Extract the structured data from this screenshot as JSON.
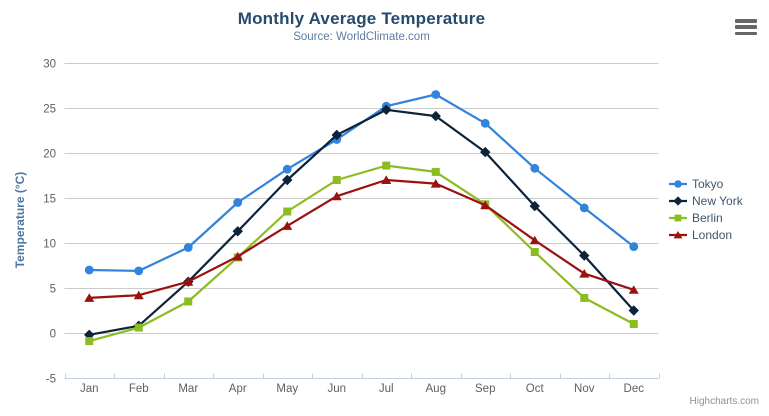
{
  "chart_data": {
    "type": "line",
    "title": "Monthly Average Temperature",
    "subtitle": "Source: WorldClimate.com",
    "xlabel": "",
    "ylabel": "Temperature (°C)",
    "categories": [
      "Jan",
      "Feb",
      "Mar",
      "Apr",
      "May",
      "Jun",
      "Jul",
      "Aug",
      "Sep",
      "Oct",
      "Nov",
      "Dec"
    ],
    "ylim": [
      -5,
      30
    ],
    "yticks": [
      -5,
      0,
      5,
      10,
      15,
      20,
      25,
      30
    ],
    "grid": true,
    "legend_position": "right",
    "series": [
      {
        "name": "Tokyo",
        "color": "#3183dc",
        "marker": "circle",
        "values": [
          7.0,
          6.9,
          9.5,
          14.5,
          18.2,
          21.5,
          25.2,
          26.5,
          23.3,
          18.3,
          13.9,
          9.6
        ]
      },
      {
        "name": "New York",
        "color": "#0d233a",
        "marker": "diamond",
        "values": [
          -0.2,
          0.8,
          5.7,
          11.3,
          17.0,
          22.0,
          24.8,
          24.1,
          20.1,
          14.1,
          8.6,
          2.5
        ]
      },
      {
        "name": "Berlin",
        "color": "#8bbc21",
        "marker": "square",
        "values": [
          -0.9,
          0.6,
          3.5,
          8.4,
          13.5,
          17.0,
          18.6,
          17.9,
          14.3,
          9.0,
          3.9,
          1.0
        ]
      },
      {
        "name": "London",
        "color": "#9c1010",
        "marker": "triangle",
        "values": [
          3.9,
          4.2,
          5.7,
          8.5,
          11.9,
          15.2,
          17.0,
          16.6,
          14.2,
          10.3,
          6.6,
          4.8
        ]
      }
    ],
    "credits": "Highcharts.com"
  },
  "icons": {
    "export_menu": "hamburger-icon"
  },
  "theme": {
    "title_color": "#274b6d",
    "subtitle_color": "#5e7da1",
    "axis_title_color": "#4d759e",
    "label_color": "#606060",
    "grid_color": "#cccccc",
    "axis_line_color": "#c0d0e0",
    "legend_text_color": "#3e576f",
    "credits_color": "#909090",
    "icon_color": "#666666",
    "background": "#ffffff"
  }
}
